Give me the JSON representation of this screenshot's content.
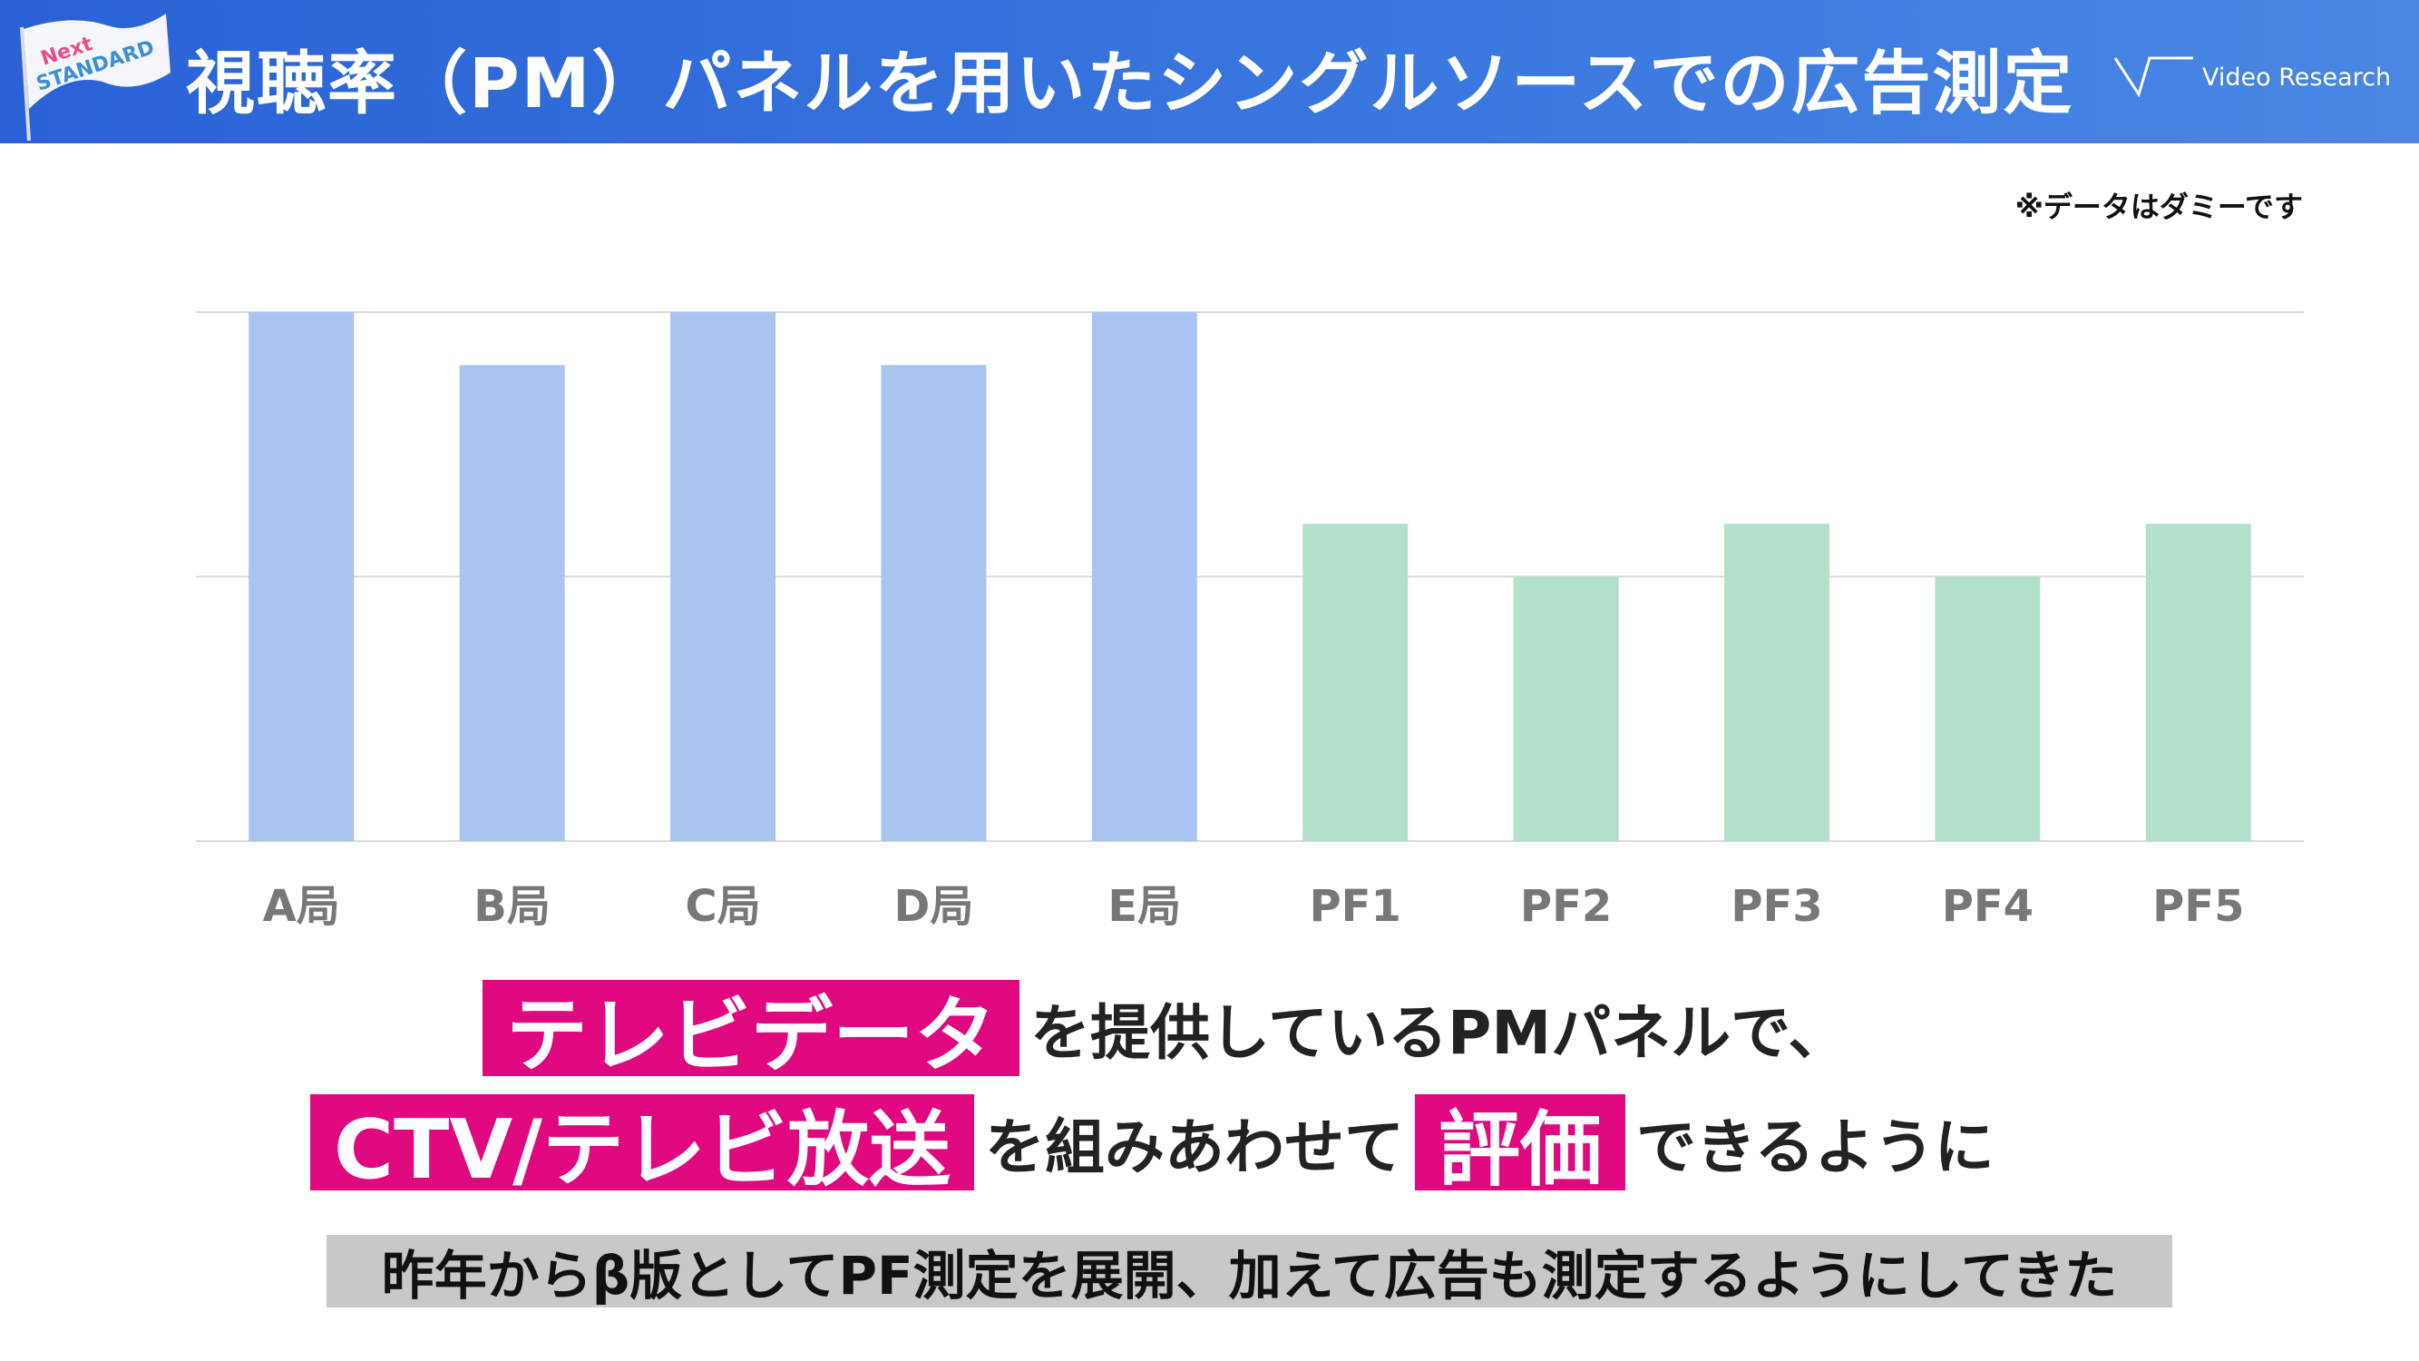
{
  "header": {
    "title": "視聴率（PM）パネルを用いたシングルソースでの広告測定",
    "logo_left": "Next STANDARD",
    "logo_right": "Video Research",
    "logo_icon": "video-research-logo-icon"
  },
  "note": "※データはダミーです",
  "colors": {
    "header": "#2a66d9",
    "broadcast_bar": "#a9c4ee",
    "platform_bar": "#b3e0cb",
    "highlight": "#e0087f",
    "grid": "#d9d9d9"
  },
  "chart_data": {
    "type": "bar",
    "categories": [
      "A局",
      "B局",
      "C局",
      "D局",
      "E局",
      "PF1",
      "PF2",
      "PF3",
      "PF4",
      "PF5"
    ],
    "values": [
      2.0,
      1.8,
      2.0,
      1.8,
      2.0,
      1.2,
      1.0,
      1.2,
      1.0,
      1.2
    ],
    "ylim": [
      0,
      2
    ],
    "grid": true,
    "y_tick_labels": false,
    "xlabel": "",
    "ylabel": "",
    "title": ""
  },
  "caption": {
    "line1": {
      "highlight": "テレビデータ",
      "text": "を提供しているPMパネルで、"
    },
    "line2": {
      "highlight1": "CTV/テレビ放送",
      "text1": "を組みあわせて",
      "highlight2": "評価",
      "text2": "できるように"
    },
    "line3": "昨年からβ版としてPF測定を展開、加えて広告も測定するようにしてきた"
  }
}
